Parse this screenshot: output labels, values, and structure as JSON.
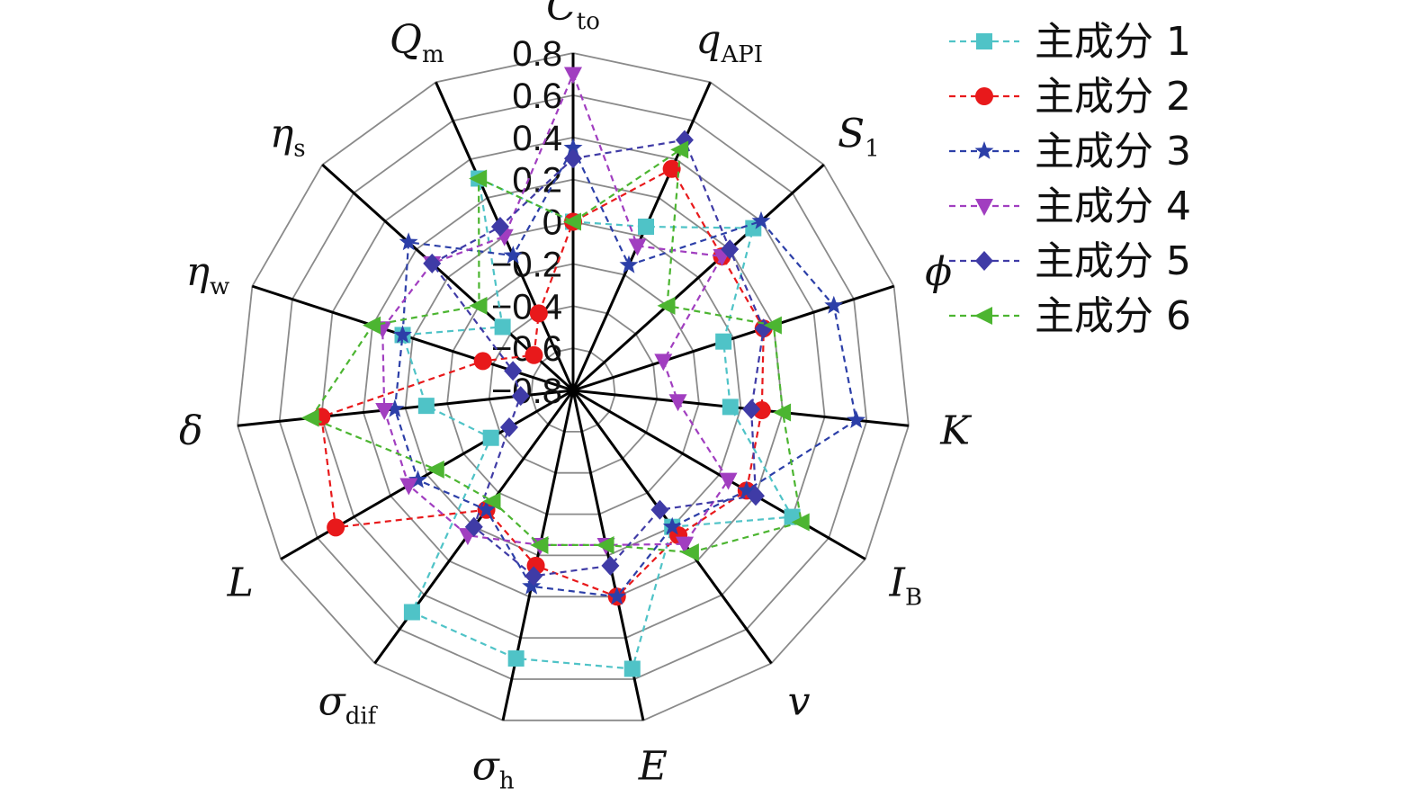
{
  "chart_data": {
    "type": "radar",
    "title": "",
    "axes": [
      {
        "sym": "C",
        "sub": "to"
      },
      {
        "sym": "q",
        "sub": "API"
      },
      {
        "sym": "S",
        "sub": "1"
      },
      {
        "sym": "ϕ",
        "sub": ""
      },
      {
        "sym": "K",
        "sub": ""
      },
      {
        "sym": "I",
        "sub": "B"
      },
      {
        "sym": "v",
        "sub": ""
      },
      {
        "sym": "E",
        "sub": ""
      },
      {
        "sym": "σ",
        "sub": "h"
      },
      {
        "sym": "σ",
        "sub": "dif"
      },
      {
        "sym": "L",
        "sub": ""
      },
      {
        "sym": "δ",
        "sub": ""
      },
      {
        "sym": "η",
        "sub": "w"
      },
      {
        "sym": "η",
        "sub": "s"
      },
      {
        "sym": "Q",
        "sub": "m"
      }
    ],
    "range": [
      -0.8,
      0.8
    ],
    "ticks": [
      "0.8",
      "0.6",
      "0.4",
      "0.2",
      "0",
      "−0.2",
      "−0.4",
      "−0.6",
      "−0.8"
    ],
    "tick_values": [
      0.8,
      0.6,
      0.4,
      0.2,
      0,
      -0.2,
      -0.4,
      -0.6,
      -0.8
    ],
    "legend_position": "top-right",
    "series": [
      {
        "name": "主成分 1",
        "color": "#4fc3c7",
        "marker": "square",
        "values": [
          0.0,
          0.05,
          0.35,
          -0.05,
          -0.05,
          0.4,
          0.0,
          0.55,
          0.5,
          0.5,
          -0.35,
          -0.1,
          0.05,
          -0.35,
          0.3
        ]
      },
      {
        "name": "主成分 2",
        "color": "#e8191b",
        "marker": "circle",
        "values": [
          0.0,
          0.35,
          0.15,
          0.15,
          0.1,
          0.15,
          0.05,
          0.2,
          0.05,
          -0.1,
          0.5,
          0.4,
          -0.35,
          -0.55,
          -0.4
        ]
      },
      {
        "name": "主成分 3",
        "color": "#2c3fa8",
        "marker": "star",
        "values": [
          0.35,
          -0.15,
          0.4,
          0.5,
          0.55,
          0.15,
          0.0,
          0.2,
          0.15,
          -0.1,
          0.05,
          0.05,
          0.05,
          0.25,
          -0.1
        ]
      },
      {
        "name": "主成分 4",
        "color": "#a13ec0",
        "marker": "triangle-down",
        "values": [
          0.7,
          -0.05,
          0.15,
          -0.35,
          -0.3,
          0.05,
          0.1,
          -0.05,
          -0.05,
          0.05,
          0.1,
          0.1,
          0.15,
          0.1,
          0.0
        ]
      },
      {
        "name": "主成分 5",
        "color": "#3f3ba6",
        "marker": "diamond",
        "values": [
          0.3,
          0.5,
          0.2,
          0.15,
          0.05,
          0.2,
          -0.1,
          0.05,
          0.1,
          0.0,
          -0.45,
          -0.55,
          -0.5,
          0.1,
          0.05
        ]
      },
      {
        "name": "主成分 6",
        "color": "#4cb531",
        "marker": "triangle-left",
        "values": [
          0.0,
          0.45,
          -0.2,
          0.2,
          0.2,
          0.45,
          0.15,
          -0.05,
          -0.05,
          -0.15,
          -0.05,
          0.45,
          0.2,
          -0.2,
          0.3
        ]
      }
    ]
  }
}
